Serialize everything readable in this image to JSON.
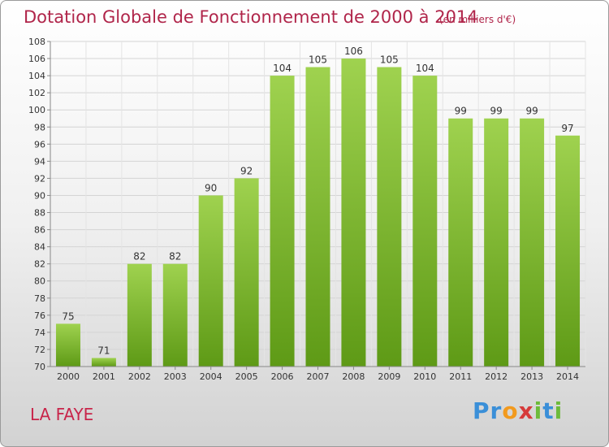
{
  "chart_data": {
    "type": "bar",
    "title": "Dotation Globale de Fonctionnement de 2000 à 2014",
    "subtitle": "(en milliers d'€)",
    "categories": [
      "2000",
      "2001",
      "2002",
      "2003",
      "2004",
      "2005",
      "2006",
      "2007",
      "2008",
      "2009",
      "2010",
      "2011",
      "2012",
      "2013",
      "2014"
    ],
    "values": [
      75,
      71,
      82,
      82,
      90,
      92,
      104,
      105,
      106,
      105,
      104,
      99,
      99,
      99,
      97
    ],
    "ylim": [
      70,
      108
    ],
    "yticks": [
      70,
      72,
      74,
      76,
      78,
      80,
      82,
      84,
      86,
      88,
      90,
      92,
      94,
      96,
      98,
      100,
      102,
      104,
      106,
      108
    ],
    "grid": true,
    "bar_color": "#7cb82e"
  },
  "footer": {
    "place": "LA FAYE",
    "logo_letters": [
      "P",
      "r",
      "o",
      "x",
      "i",
      "t",
      "i"
    ]
  }
}
